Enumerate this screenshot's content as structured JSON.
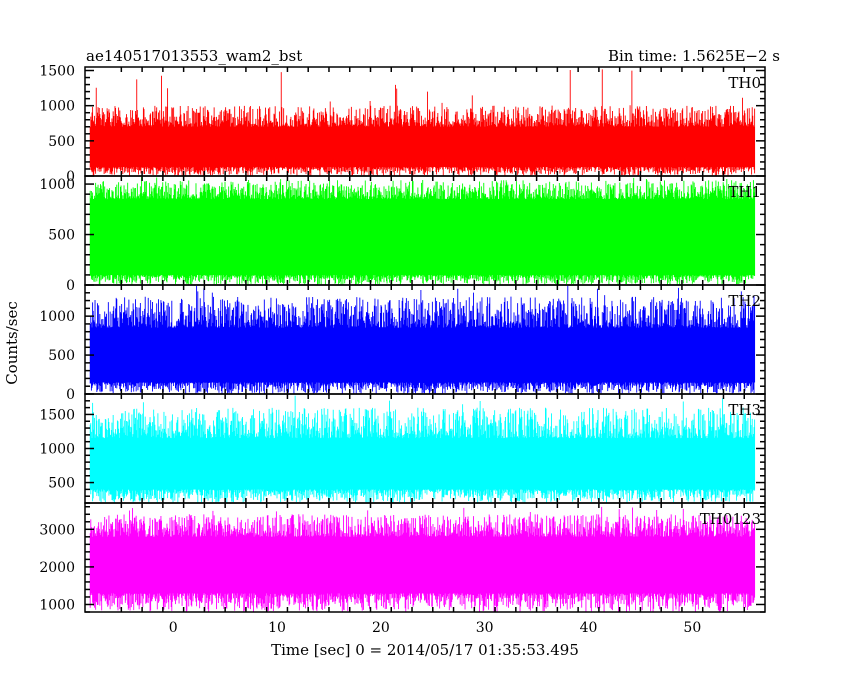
{
  "header": {
    "title": "ae140517013553_wam2_bst",
    "bin_time": "Bin time: 1.5625E−2 s"
  },
  "chart_data": {
    "type": "line",
    "title": "ae140517013553_wam2_bst",
    "subtitle": "Bin time: 1.5625E−2 s",
    "xlabel": "Time [sec] 0 = 2014/05/17 01:35:53.495",
    "ylabel": "Counts/sec",
    "xlim": [
      -8.5,
      57
    ],
    "xdata_range": [
      -8,
      56
    ],
    "xticks": [
      0,
      10,
      20,
      30,
      40,
      50
    ],
    "xtick_labels": [
      "0",
      "10",
      "20",
      "30",
      "40",
      "50"
    ],
    "grid": false,
    "panels": [
      {
        "name": "TH0",
        "color": "#ff0000",
        "ylim": [
          0,
          1550
        ],
        "yticks": [
          0,
          500,
          1000,
          1500
        ],
        "ytick_labels": [
          "0",
          "500",
          "1000",
          "1500"
        ],
        "band_low": 130,
        "band_high": 700,
        "peak_typical": 1000,
        "peak_max": 1550,
        "trough_min": 0
      },
      {
        "name": "TH1",
        "color": "#00ff00",
        "ylim": [
          0,
          1080
        ],
        "yticks": [
          0,
          500,
          1000
        ],
        "ytick_labels": [
          "0",
          "500",
          "1000"
        ],
        "band_low": 100,
        "band_high": 850,
        "peak_typical": 1040,
        "peak_max": 1080,
        "trough_min": 0
      },
      {
        "name": "TH2",
        "color": "#0000ff",
        "ylim": [
          0,
          1400
        ],
        "yticks": [
          0,
          500,
          1000
        ],
        "ytick_labels": [
          "0",
          "500",
          "1000"
        ],
        "band_low": 150,
        "band_high": 850,
        "peak_typical": 1250,
        "peak_max": 1400,
        "trough_min": 0
      },
      {
        "name": "TH3",
        "color": "#00ffff",
        "ylim": [
          200,
          1800
        ],
        "yticks": [
          500,
          1000,
          1500
        ],
        "ytick_labels": [
          "500",
          "1000",
          "1500"
        ],
        "band_low": 400,
        "band_high": 1150,
        "peak_typical": 1600,
        "peak_max": 1800,
        "trough_min": 200
      },
      {
        "name": "TH0123",
        "color": "#ff00ff",
        "ylim": [
          800,
          3700
        ],
        "yticks": [
          1000,
          2000,
          3000
        ],
        "ytick_labels": [
          "1000",
          "2000",
          "3000"
        ],
        "band_low": 1300,
        "band_high": 2800,
        "peak_typical": 3400,
        "peak_max": 3600,
        "trough_min": 800
      }
    ]
  }
}
